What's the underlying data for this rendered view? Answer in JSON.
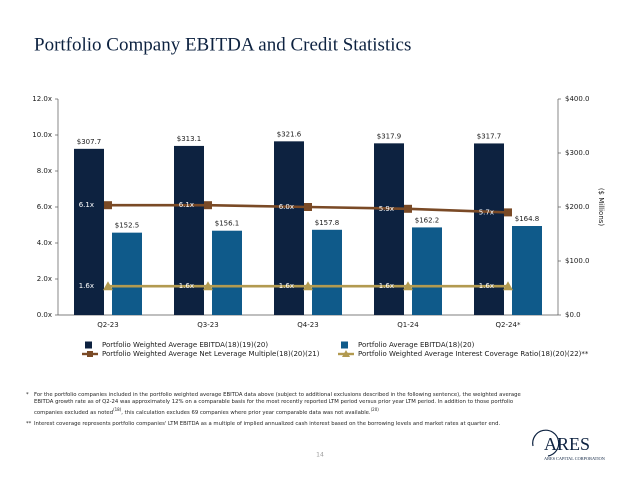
{
  "chart_data": {
    "type": "bar",
    "title": "Portfolio Company EBITDA and Credit Statistics",
    "categories": [
      "Q2-23",
      "Q3-23",
      "Q4-23",
      "Q1-24",
      "Q2-24*"
    ],
    "ylim": [
      0,
      12
    ],
    "yticks": [
      {
        "value": 0,
        "label": "0.0x"
      },
      {
        "value": 2,
        "label": "2.0x"
      },
      {
        "value": 4,
        "label": "4.0x"
      },
      {
        "value": 6,
        "label": "6.0x"
      },
      {
        "value": 8,
        "label": "8.0x"
      },
      {
        "value": 10,
        "label": "10.0x"
      },
      {
        "value": 12,
        "label": "12.0x"
      }
    ],
    "y2lim": [
      0,
      400
    ],
    "y2ticks": [
      {
        "value": 0,
        "label": "$0.0"
      },
      {
        "value": 100,
        "label": "$100.0"
      },
      {
        "value": 200,
        "label": "$200.0"
      },
      {
        "value": 300,
        "label": "$300.0"
      },
      {
        "value": 400,
        "label": "$400.0"
      }
    ],
    "y2label": "($ Millions)",
    "series": [
      {
        "name": "Portfolio Weighted Average EBITDA(18)(19)(20)",
        "type": "bar",
        "axis": "y2",
        "color": "#0d2240",
        "values": [
          307.7,
          313.1,
          321.6,
          317.9,
          317.7
        ],
        "value_labels": [
          "$307.7",
          "$313.1",
          "$321.6",
          "$317.9",
          "$317.7"
        ]
      },
      {
        "name": "Portfolio Average EBITDA(18)(20)",
        "type": "bar",
        "axis": "y2",
        "color": "#0f5a8a",
        "values": [
          152.5,
          156.1,
          157.8,
          162.2,
          164.8
        ],
        "value_labels": [
          "$152.5",
          "$156.1",
          "$157.8",
          "$162.2",
          "$164.8"
        ]
      },
      {
        "name": "Portfolio Weighted Average Net Leverage Multiple(18)(20)(21)",
        "type": "line",
        "marker": "square",
        "color": "#7a4a26",
        "values": [
          6.1,
          6.1,
          6.0,
          5.9,
          5.7
        ],
        "value_labels": [
          "6.1x",
          "6.1x",
          "6.0x",
          "5.9x",
          "5.7x"
        ]
      },
      {
        "name": "Portfolio Weighted Average Interest Coverage Ratio(18)(20)(22)**",
        "type": "line",
        "marker": "triangle",
        "color": "#b29a50",
        "values": [
          1.6,
          1.6,
          1.6,
          1.6,
          1.6
        ],
        "value_labels": [
          "1.6x",
          "1.6x",
          "1.6x",
          "1.6x",
          "1.6x"
        ]
      }
    ]
  },
  "footnotes": [
    {
      "marker": "*",
      "text": "For the portfolio companies included in the portfolio weighted average EBITDA data above (subject to additional exclusions described in the following sentence), the weighted average EBITDA growth rate as of Q2-24 was approximately 12% on a comparable basis for the most recently reported LTM period versus prior year LTM period. In addition to those portfolio companies excluded as noted",
      "ref": "(18)",
      "text2": ", this calculation excludes 69 companies where prior year comparable data was not available.",
      "ref2": "(20)"
    },
    {
      "marker": "**",
      "text": "Interest coverage represents portfolio companies' LTM EBITDA as a multiple of implied annualized cash interest based on the borrowing levels and market rates at quarter end."
    }
  ],
  "page_number": "14",
  "logo": {
    "name": "ARES",
    "subtitle": "ARES CAPITAL CORPORATION"
  }
}
